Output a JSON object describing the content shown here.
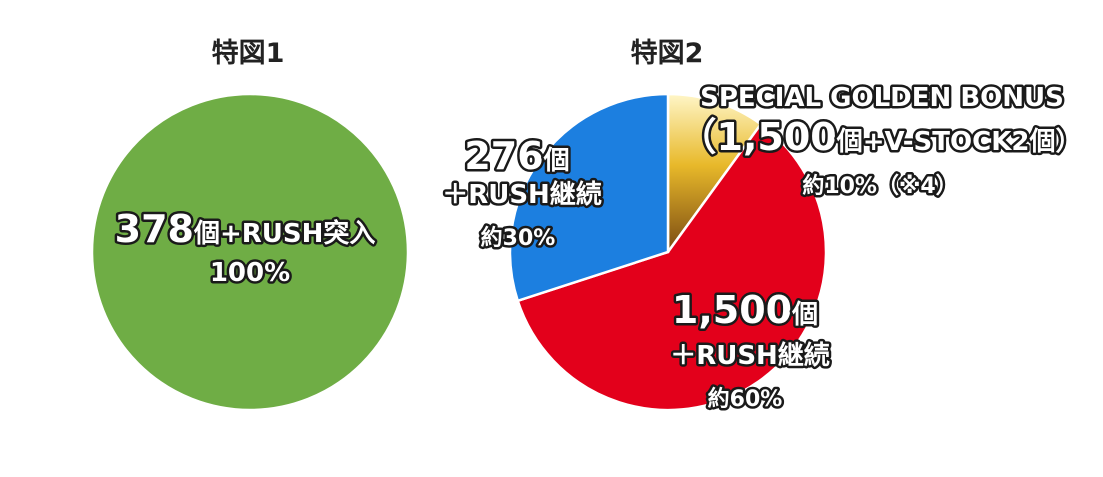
{
  "chart_data": [
    {
      "type": "pie",
      "title": "特図1",
      "slices": [
        {
          "value": 100,
          "color": "#6fad45",
          "label_main": "378",
          "label_suffix": "個+RUSH突入",
          "label_lines": [],
          "label_pct": "100%"
        }
      ]
    },
    {
      "type": "pie",
      "title": "特図2",
      "slices": [
        {
          "value": 10,
          "color": "#d9a81e",
          "label_top": "SPECIAL GOLDEN BONUS",
          "label_main": "（1,500",
          "label_suffix": "個+V-STOCK2個）",
          "label_lines": [],
          "label_pct": "約10%（※4）"
        },
        {
          "value": 60,
          "color": "#e3001b",
          "label_main": "1,500",
          "label_suffix": "個",
          "label_lines": [
            "＋RUSH継続"
          ],
          "label_pct": "約60%"
        },
        {
          "value": 30,
          "color": "#1c7fe0",
          "label_main": "276",
          "label_suffix": "個",
          "label_lines": [
            "＋RUSH継続"
          ],
          "label_pct": "約30%"
        }
      ]
    }
  ]
}
